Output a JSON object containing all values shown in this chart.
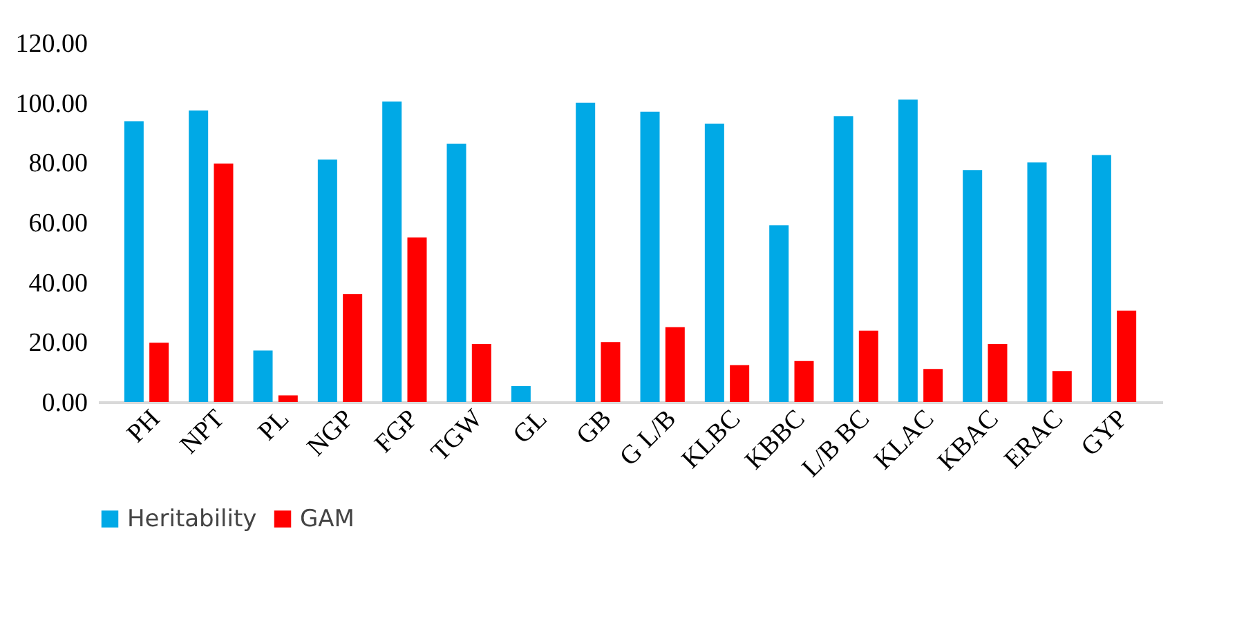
{
  "chart_data": {
    "type": "bar",
    "categories": [
      "PH",
      "NPT",
      "PL",
      "NGP",
      "FGP",
      "TGW",
      "GL",
      "GB",
      "G L/B",
      "KLBC",
      "KBBC",
      "L/B BC",
      "KLAC",
      "KBAC",
      "ERAC",
      "GYP"
    ],
    "series": [
      {
        "name": "Heritability",
        "color": "#00a9e6",
        "values": [
          93.8,
          97.4,
          17.2,
          81,
          100.4,
          86.3,
          5.3,
          100,
          97,
          93,
          59,
          95.5,
          101,
          77.5,
          80,
          82.5
        ]
      },
      {
        "name": "GAM",
        "color": "#ff0000",
        "values": [
          19.8,
          79.7,
          2.2,
          36,
          55,
          19.4,
          0,
          20,
          25,
          12.3,
          13.7,
          23.8,
          11,
          19.4,
          10.3,
          30.5
        ]
      }
    ],
    "ylim": [
      0,
      120
    ],
    "yticks": [
      {
        "value": 0,
        "label": "0.00"
      },
      {
        "value": 20,
        "label": "20.00"
      },
      {
        "value": 40,
        "label": "40.00"
      },
      {
        "value": 60,
        "label": "60.00"
      },
      {
        "value": 80,
        "label": "80.00"
      },
      {
        "value": 100,
        "label": "100.00"
      },
      {
        "value": 120,
        "label": "120.00"
      }
    ],
    "grid": false,
    "legend": "bottom"
  }
}
